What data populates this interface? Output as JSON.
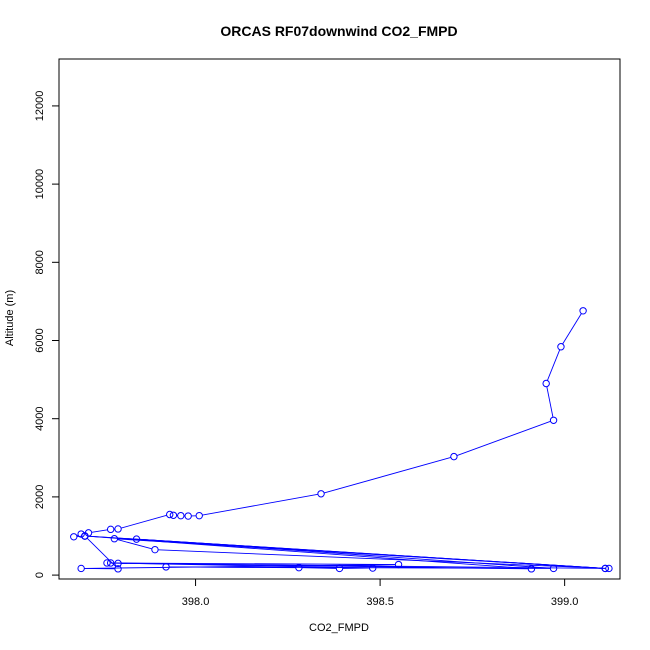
{
  "chart_data": {
    "type": "line",
    "title": "ORCAS RF07downwind CO2_FMPD",
    "xlabel": "CO2_FMPD",
    "ylabel": "Altitude (m)",
    "xlim": [
      397.63,
      399.15
    ],
    "ylim": [
      -100,
      13200
    ],
    "x_ticks": [
      "398.0",
      "398.5",
      "399.0"
    ],
    "x_tick_values": [
      398.0,
      398.5,
      399.0
    ],
    "y_ticks": [
      "0",
      "2000",
      "4000",
      "6000",
      "8000",
      "10000",
      "12000"
    ],
    "y_tick_values": [
      0,
      2000,
      4000,
      6000,
      8000,
      10000,
      12000
    ],
    "marker": "open-circle",
    "series_color": "#0000ff",
    "grid": false,
    "legend": "none",
    "series": [
      {
        "x": [
          399.05,
          398.99,
          398.95,
          398.97,
          398.7,
          398.34,
          398.01,
          397.98,
          397.96,
          397.94,
          397.93,
          397.79,
          397.77,
          397.71,
          397.69,
          397.67,
          397.7,
          399.11,
          397.78,
          397.89,
          399.12,
          397.79,
          397.77,
          398.91,
          397.7,
          399.11,
          397.84,
          398.97,
          397.92,
          398.28,
          398.39,
          398.48,
          397.76,
          398.55,
          397.69,
          397.79,
          397.7
        ],
        "y": [
          6760,
          5840,
          4900,
          3960,
          3030,
          2080,
          1520,
          1510,
          1520,
          1530,
          1550,
          1180,
          1170,
          1080,
          1050,
          980,
          1000,
          170,
          930,
          650,
          170,
          300,
          310,
          160,
          1000,
          170,
          920,
          170,
          210,
          190,
          170,
          180,
          310,
          270,
          170,
          160,
          1000
        ]
      }
    ]
  }
}
